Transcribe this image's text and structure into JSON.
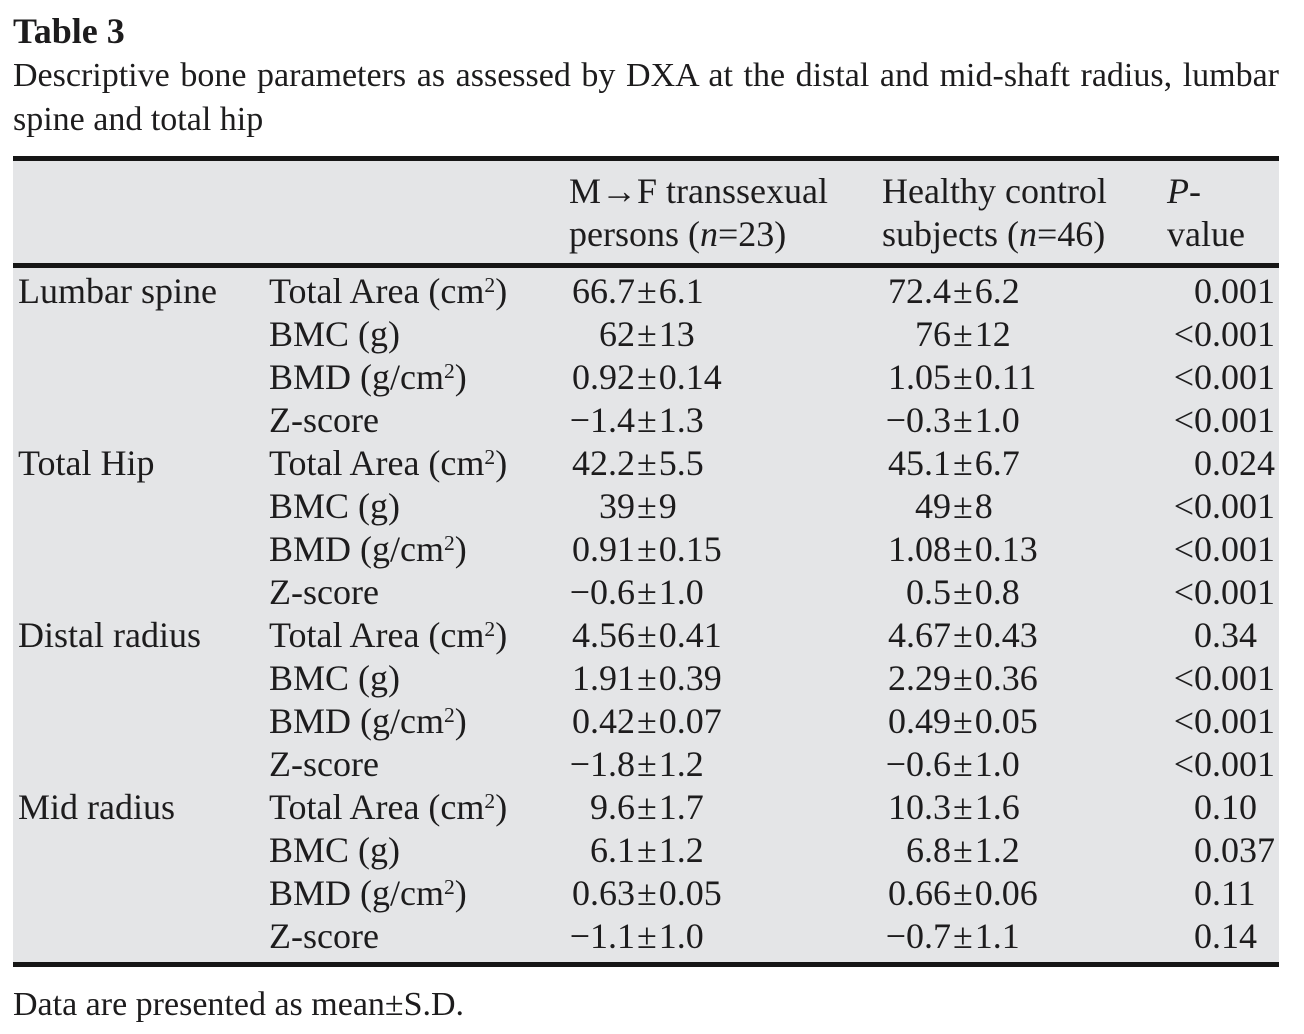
{
  "title": "Table 3",
  "caption": "Descriptive bone parameters as assessed by DXA at the distal and mid-shaft radius, lumbar spine and total hip",
  "footnote": "Data are presented as mean±S.D.",
  "table": {
    "columns": [
      "",
      "",
      "M→F transsexual persons (n=23)",
      "Healthy control subjects (n=46)",
      "P-value"
    ],
    "groups": [
      {
        "site": "Lumbar spine",
        "rows": [
          {
            "param": "Total Area (cm²)",
            "mtf": "66.7±6.1",
            "control": "72.4±6.2",
            "p": "0.001"
          },
          {
            "param": "BMC (g)",
            "mtf": "62±13",
            "control": "76±12",
            "p": "<0.001"
          },
          {
            "param": "BMD (g/cm²)",
            "mtf": "0.92±0.14",
            "control": "1.05±0.11",
            "p": "<0.001"
          },
          {
            "param": "Z-score",
            "mtf": "−1.4±1.3",
            "control": "−0.3±1.0",
            "p": "<0.001"
          }
        ]
      },
      {
        "site": "Total Hip",
        "rows": [
          {
            "param": "Total Area (cm²)",
            "mtf": "42.2±5.5",
            "control": "45.1±6.7",
            "p": "0.024"
          },
          {
            "param": "BMC (g)",
            "mtf": "39±9",
            "control": "49±8",
            "p": "<0.001"
          },
          {
            "param": "BMD (g/cm²)",
            "mtf": "0.91±0.15",
            "control": "1.08±0.13",
            "p": "<0.001"
          },
          {
            "param": "Z-score",
            "mtf": "−0.6±1.0",
            "control": "0.5±0.8",
            "p": "<0.001"
          }
        ]
      },
      {
        "site": "Distal radius",
        "rows": [
          {
            "param": "Total Area (cm²)",
            "mtf": "4.56±0.41",
            "control": "4.67±0.43",
            "p": "0.34"
          },
          {
            "param": "BMC (g)",
            "mtf": "1.91±0.39",
            "control": "2.29±0.36",
            "p": "<0.001"
          },
          {
            "param": "BMD (g/cm²)",
            "mtf": "0.42±0.07",
            "control": "0.49±0.05",
            "p": "<0.001"
          },
          {
            "param": "Z-score",
            "mtf": "−1.8±1.2",
            "control": "−0.6±1.0",
            "p": "<0.001"
          }
        ]
      },
      {
        "site": "Mid radius",
        "rows": [
          {
            "param": "Total Area (cm²)",
            "mtf": "9.6±1.7",
            "control": "10.3±1.6",
            "p": "0.10"
          },
          {
            "param": "BMC (g)",
            "mtf": "6.1±1.2",
            "control": "6.8±1.2",
            "p": "0.037"
          },
          {
            "param": "BMD (g/cm²)",
            "mtf": "0.63±0.05",
            "control": "0.66±0.06",
            "p": "0.11"
          },
          {
            "param": "Z-score",
            "mtf": "−1.1±1.0",
            "control": "−0.7±1.1",
            "p": "0.14"
          }
        ]
      }
    ]
  }
}
